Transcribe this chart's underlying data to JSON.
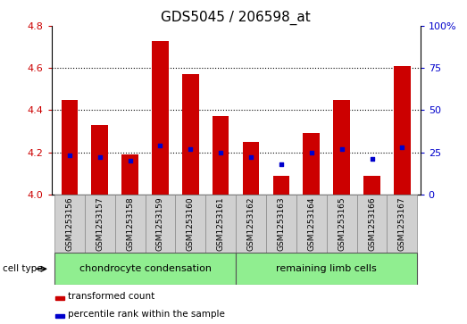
{
  "title": "GDS5045 / 206598_at",
  "samples": [
    "GSM1253156",
    "GSM1253157",
    "GSM1253158",
    "GSM1253159",
    "GSM1253160",
    "GSM1253161",
    "GSM1253162",
    "GSM1253163",
    "GSM1253164",
    "GSM1253165",
    "GSM1253166",
    "GSM1253167"
  ],
  "transformed_count": [
    4.45,
    4.33,
    4.19,
    4.73,
    4.57,
    4.37,
    4.25,
    4.09,
    4.29,
    4.45,
    4.09,
    4.61
  ],
  "percentile_rank": [
    23,
    22,
    20,
    29,
    27,
    25,
    22,
    18,
    25,
    27,
    21,
    28
  ],
  "ylim": [
    4.0,
    4.8
  ],
  "yticks_left": [
    4.0,
    4.2,
    4.4,
    4.6,
    4.8
  ],
  "yticks_right": [
    0,
    25,
    50,
    75,
    100
  ],
  "bar_color": "#cc0000",
  "dot_color": "#0000cc",
  "grid_color": "#000000",
  "cell_type_groups": [
    {
      "label": "chondrocyte condensation",
      "start": 0,
      "end": 6,
      "color": "#90ee90"
    },
    {
      "label": "remaining limb cells",
      "start": 6,
      "end": 12,
      "color": "#90ee90"
    }
  ],
  "group_bg_color": "#d0d0d0",
  "legend_items": [
    {
      "label": "transformed count",
      "color": "#cc0000"
    },
    {
      "label": "percentile rank within the sample",
      "color": "#0000cc"
    }
  ],
  "cell_type_label": "cell type",
  "title_fontsize": 11,
  "tick_fontsize": 8,
  "label_fontsize": 8,
  "sample_fontsize": 6.5
}
